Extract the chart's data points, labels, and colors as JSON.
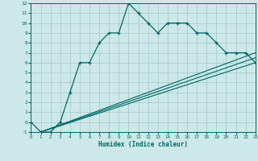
{
  "xlabel": "Humidex (Indice chaleur)",
  "bg_color": "#cce8e8",
  "grid_color": "#aacccc",
  "line_color": "#006666",
  "xlim": [
    0,
    23
  ],
  "ylim": [
    -1,
    12
  ],
  "xticks": [
    0,
    1,
    2,
    3,
    4,
    5,
    6,
    7,
    8,
    9,
    10,
    11,
    12,
    13,
    14,
    15,
    16,
    17,
    18,
    19,
    20,
    21,
    22,
    23
  ],
  "yticks": [
    -1,
    0,
    1,
    2,
    3,
    4,
    5,
    6,
    7,
    8,
    9,
    10,
    11,
    12
  ],
  "line1_x": [
    0,
    1,
    2,
    3,
    4,
    5,
    6,
    7,
    8,
    9,
    10,
    11,
    12,
    13,
    14,
    15,
    16,
    17,
    18,
    19,
    20,
    21,
    22,
    23
  ],
  "line1_y": [
    0,
    -1,
    -1,
    0,
    3,
    6,
    6,
    8,
    9,
    9,
    12,
    11,
    10,
    9,
    10,
    10,
    10,
    9,
    9,
    8,
    7,
    7,
    7,
    6
  ],
  "line2_x": [
    1,
    23
  ],
  "line2_y": [
    -1,
    6
  ],
  "line3_x": [
    1,
    23
  ],
  "line3_y": [
    -1,
    7
  ],
  "line4_x": [
    1,
    23
  ],
  "line4_y": [
    -1,
    6.5
  ]
}
